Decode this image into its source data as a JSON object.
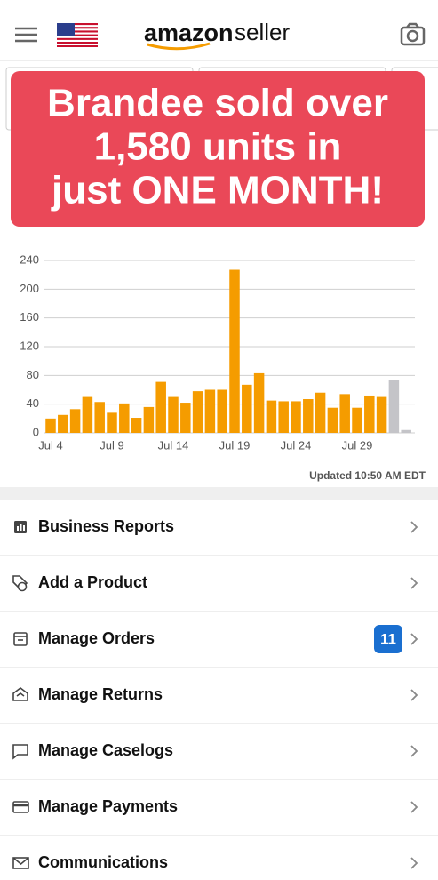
{
  "header": {
    "logo_main": "amazon",
    "logo_sub": "seller"
  },
  "banner": {
    "lines": [
      "Brandee sold over",
      "1,580 units in",
      "just ONE MONTH!"
    ]
  },
  "chart_data": {
    "type": "bar",
    "categories": [
      "Jul 4",
      null,
      null,
      null,
      null,
      "Jul 9",
      null,
      null,
      null,
      null,
      "Jul 14",
      null,
      null,
      null,
      null,
      "Jul 19",
      null,
      null,
      null,
      null,
      "Jul 24",
      null,
      null,
      null,
      null,
      "Jul 29",
      null,
      null,
      null,
      null
    ],
    "values": [
      20,
      25,
      33,
      50,
      43,
      28,
      41,
      21,
      36,
      71,
      50,
      42,
      58,
      60,
      60,
      227,
      67,
      83,
      45,
      44,
      44,
      47,
      56,
      35,
      54,
      35,
      52,
      50,
      73,
      4
    ],
    "colors": [
      "#f59c00",
      "#f59c00",
      "#f59c00",
      "#f59c00",
      "#f59c00",
      "#f59c00",
      "#f59c00",
      "#f59c00",
      "#f59c00",
      "#f59c00",
      "#f59c00",
      "#f59c00",
      "#f59c00",
      "#f59c00",
      "#f59c00",
      "#f59c00",
      "#f59c00",
      "#f59c00",
      "#f59c00",
      "#f59c00",
      "#f59c00",
      "#f59c00",
      "#f59c00",
      "#f59c00",
      "#f59c00",
      "#f59c00",
      "#f59c00",
      "#f59c00",
      "#c4c4c8",
      "#c4c4c8"
    ],
    "ylim": [
      0,
      240
    ],
    "yticks": [
      0,
      40,
      80,
      120,
      160,
      200,
      240
    ],
    "grid": true
  },
  "updated": "Updated 10:50 AM EDT",
  "menu": {
    "items": [
      {
        "label": "Business Reports"
      },
      {
        "label": "Add a Product"
      },
      {
        "label": "Manage Orders",
        "badge": 11
      },
      {
        "label": "Manage Returns"
      },
      {
        "label": "Manage Caselogs"
      },
      {
        "label": "Manage Payments"
      },
      {
        "label": "Communications"
      }
    ]
  }
}
